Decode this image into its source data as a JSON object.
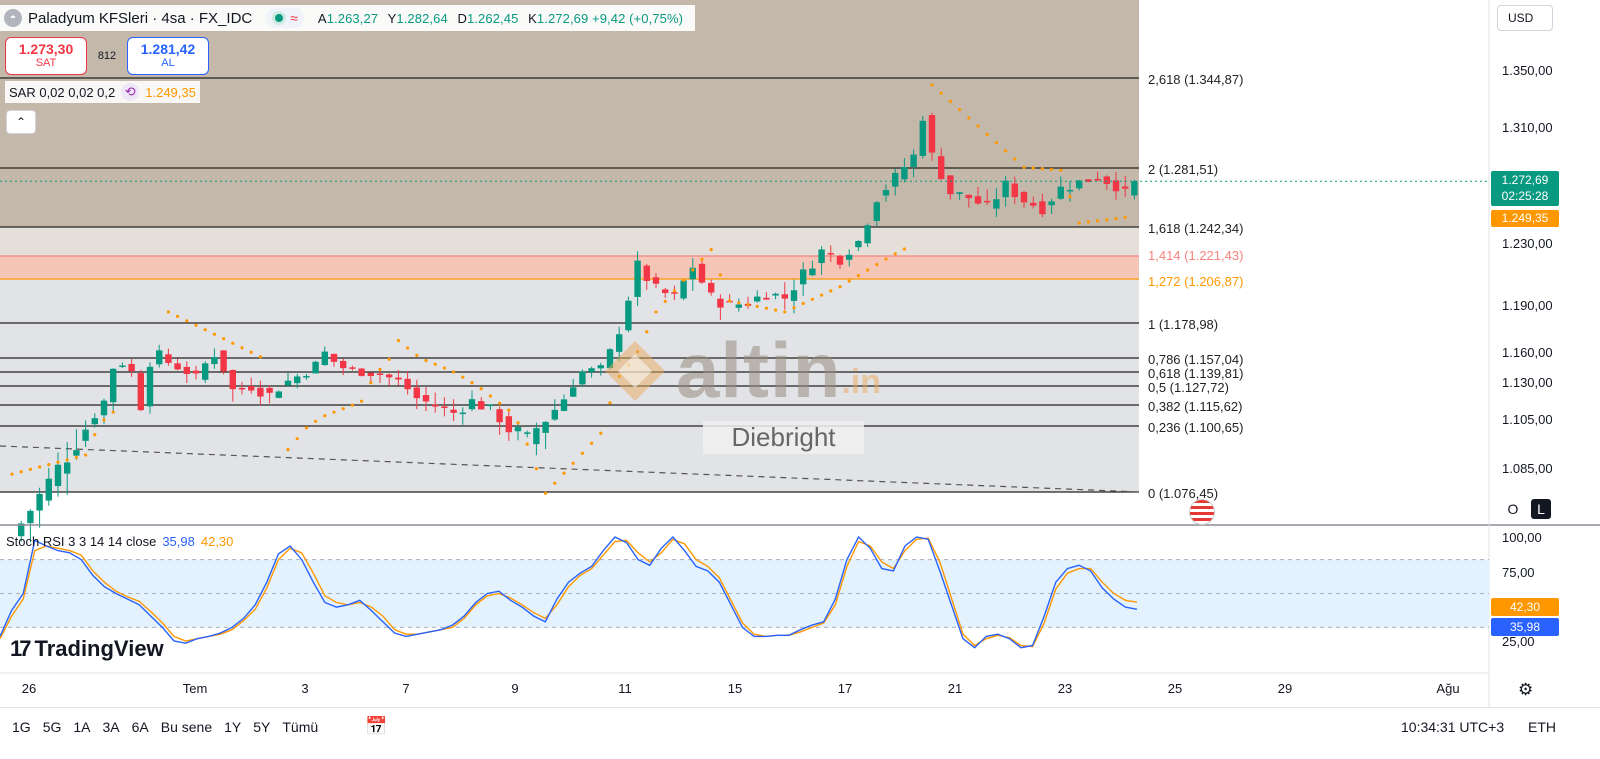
{
  "header": {
    "symbol": "Paladyum KFSleri · 4sa · FX_IDC",
    "logo_icon": "palladium-logo-icon",
    "ohlc": [
      {
        "k": "A",
        "v": "1.263,27"
      },
      {
        "k": "Y",
        "v": "1.282,64"
      },
      {
        "k": "D",
        "v": "1.262,45"
      },
      {
        "k": "K",
        "v": "1.272,69 +9,42 (+0,75%)"
      }
    ],
    "wave_icon": "≈"
  },
  "trade": {
    "sell_price": "1.273,30",
    "sell_label": "SAT",
    "spread": "812",
    "buy_price": "1.281,42",
    "buy_label": "AL"
  },
  "sar": {
    "label": "SAR 0,02 0,02 0,2",
    "value": "1.249,35",
    "icon": "⟲"
  },
  "collapse_icon": "⌃",
  "stoch": {
    "label": "Stoch RSI 3 3 14 14 close",
    "k": "35,98",
    "d": "42,30"
  },
  "brand": {
    "mark": "17",
    "name": "TradingView"
  },
  "currency": "USD",
  "price_axis": [
    "1.350,00",
    "1.310,00",
    "1.230,00",
    "1.190,00",
    "1.160,00",
    "1.130,00",
    "1.105,00",
    "1.085,00"
  ],
  "price_axis_values": [
    1350,
    1310,
    1230,
    1190,
    1160,
    1130,
    1105,
    1085
  ],
  "current_price": {
    "value": "1.272,69",
    "countdown": "02:25:28",
    "sar": "1.249,35"
  },
  "axis_buttons": {
    "o": "O",
    "l": "L"
  },
  "stoch_axis": [
    "100,00",
    "75,00",
    "25,00"
  ],
  "stoch_marks": {
    "d": "42,30",
    "k": "35,98"
  },
  "x_axis": [
    "26",
    "Tem",
    "3",
    "7",
    "9",
    "11",
    "15",
    "17",
    "21",
    "23",
    "25",
    "29",
    "Ağu"
  ],
  "ranges": [
    "1G",
    "5G",
    "1A",
    "3A",
    "6A",
    "Bu sene",
    "1Y",
    "5Y",
    "Tümü"
  ],
  "clock": "10:34:31 UTC+3",
  "session": "ETH",
  "watermark": {
    "text": "altin",
    "suffix": ".in",
    "sub": "Diebright"
  },
  "colors": {
    "up": "#089981",
    "down": "#f23645",
    "sar": "#ff9800",
    "stoch_k": "#2962ff",
    "stoch_d": "#ff9800",
    "fib_top_zone": "#c3b8aa",
    "fib_highlight": "#f5c6b8"
  },
  "chart_data": {
    "type": "candlestick",
    "timeframe": "4sa",
    "fibonacci": [
      {
        "ratio": "2,618",
        "price": 1344.87,
        "label": "2,618 (1.344,87)"
      },
      {
        "ratio": "2",
        "price": 1281.51,
        "label": "2 (1.281,51)"
      },
      {
        "ratio": "1,618",
        "price": 1242.34,
        "label": "1,618 (1.242,34)"
      },
      {
        "ratio": "1,414",
        "price": 1221.43,
        "label": "1,414 (1.221,43)",
        "color": "#f7837e"
      },
      {
        "ratio": "1,272",
        "price": 1206.87,
        "label": "1,272 (1.206,87)",
        "color": "#ff9800"
      },
      {
        "ratio": "1",
        "price": 1178.98,
        "label": "1 (1.178,98)"
      },
      {
        "ratio": "0,786",
        "price": 1157.04,
        "label": "0,786 (1.157,04)"
      },
      {
        "ratio": "0,618",
        "price": 1139.81,
        "label": "0,618 (1.139,81)"
      },
      {
        "ratio": "0,5",
        "price": 1127.72,
        "label": "0,5 (1.127,72)"
      },
      {
        "ratio": "0,382",
        "price": 1115.62,
        "label": "0,382 (1.115,62)"
      },
      {
        "ratio": "0,236",
        "price": 1100.65,
        "label": "0,236 (1.100,65)"
      },
      {
        "ratio": "0",
        "price": 1076.45,
        "label": "0 (1.076,45)"
      }
    ],
    "close_path": [
      [
        0,
        1060
      ],
      [
        4,
        1080
      ],
      [
        8,
        1100
      ],
      [
        10,
        1118
      ],
      [
        11,
        1145
      ],
      [
        12,
        1150
      ],
      [
        13,
        1140
      ],
      [
        14,
        1115
      ],
      [
        15,
        1150
      ],
      [
        16,
        1158
      ],
      [
        18,
        1145
      ],
      [
        20,
        1135
      ],
      [
        21,
        1150
      ],
      [
        22,
        1160
      ],
      [
        24,
        1125
      ],
      [
        26,
        1128
      ],
      [
        28,
        1122
      ],
      [
        30,
        1132
      ],
      [
        32,
        1140
      ],
      [
        34,
        1160
      ],
      [
        36,
        1145
      ],
      [
        38,
        1140
      ],
      [
        40,
        1138
      ],
      [
        42,
        1132
      ],
      [
        44,
        1120
      ],
      [
        46,
        1115
      ],
      [
        48,
        1110
      ],
      [
        50,
        1118
      ],
      [
        52,
        1112
      ],
      [
        54,
        1100
      ],
      [
        56,
        1095
      ],
      [
        58,
        1105
      ],
      [
        60,
        1120
      ],
      [
        62,
        1140
      ],
      [
        64,
        1145
      ],
      [
        66,
        1175
      ],
      [
        68,
        1215
      ],
      [
        70,
        1200
      ],
      [
        72,
        1195
      ],
      [
        74,
        1215
      ],
      [
        76,
        1195
      ],
      [
        78,
        1190
      ],
      [
        80,
        1192
      ],
      [
        82,
        1198
      ],
      [
        84,
        1195
      ],
      [
        86,
        1210
      ],
      [
        88,
        1225
      ],
      [
        90,
        1220
      ],
      [
        92,
        1232
      ],
      [
        94,
        1262
      ],
      [
        96,
        1275
      ],
      [
        98,
        1290
      ],
      [
        99,
        1318
      ],
      [
        100,
        1290
      ],
      [
        102,
        1265
      ],
      [
        104,
        1262
      ],
      [
        106,
        1255
      ],
      [
        108,
        1270
      ],
      [
        110,
        1260
      ],
      [
        112,
        1255
      ],
      [
        114,
        1268
      ],
      [
        116,
        1272
      ],
      [
        118,
        1276
      ],
      [
        120,
        1270
      ],
      [
        121,
        1264
      ],
      [
        122,
        1272.69
      ]
    ],
    "parabolic_sar": [
      [
        0,
        1083
      ],
      [
        8,
        1090
      ],
      [
        10,
        1105
      ],
      [
        12,
        1116
      ],
      [
        17,
        1186
      ],
      [
        28,
        1155
      ],
      [
        30,
        1092
      ],
      [
        34,
        1108
      ],
      [
        38,
        1118
      ],
      [
        42,
        1168
      ],
      [
        54,
        1112
      ],
      [
        58,
        1076
      ],
      [
        64,
        1098
      ],
      [
        66,
        1136
      ],
      [
        70,
        1186
      ],
      [
        76,
        1226
      ],
      [
        78,
        1193
      ],
      [
        84,
        1186
      ],
      [
        90,
        1202
      ],
      [
        98,
        1230
      ],
      [
        100,
        1340
      ],
      [
        110,
        1282
      ],
      [
        114,
        1280
      ],
      [
        116,
        1245
      ],
      [
        122,
        1249.35
      ]
    ],
    "stoch_rsi": {
      "k": [
        12,
        35,
        50,
        97,
        92,
        88,
        86,
        80,
        66,
        56,
        50,
        45,
        40,
        30,
        20,
        8,
        6,
        10,
        12,
        15,
        20,
        28,
        40,
        60,
        85,
        92,
        80,
        60,
        42,
        38,
        40,
        44,
        35,
        25,
        15,
        12,
        14,
        16,
        18,
        22,
        30,
        42,
        50,
        52,
        44,
        38,
        30,
        25,
        45,
        60,
        68,
        74,
        88,
        100,
        95,
        80,
        75,
        90,
        100,
        88,
        74,
        70,
        60,
        40,
        20,
        12,
        12,
        13,
        13,
        18,
        22,
        25,
        45,
        80,
        100,
        90,
        72,
        70,
        92,
        100,
        98,
        70,
        40,
        10,
        2,
        12,
        14,
        10,
        2,
        4,
        30,
        60,
        72,
        75,
        70,
        55,
        45,
        38,
        35.98
      ],
      "d": [
        10,
        30,
        45,
        88,
        92,
        90,
        88,
        84,
        70,
        60,
        52,
        47,
        43,
        34,
        24,
        12,
        8,
        10,
        12,
        14,
        18,
        26,
        36,
        55,
        80,
        90,
        86,
        68,
        48,
        42,
        40,
        42,
        38,
        30,
        18,
        14,
        14,
        16,
        18,
        20,
        28,
        40,
        48,
        50,
        46,
        40,
        33,
        28,
        40,
        56,
        66,
        72,
        84,
        96,
        97,
        86,
        78,
        86,
        98,
        94,
        80,
        74,
        64,
        44,
        24,
        14,
        12,
        13,
        13,
        16,
        20,
        24,
        40,
        74,
        96,
        92,
        78,
        72,
        88,
        98,
        99,
        78,
        46,
        14,
        4,
        10,
        13,
        11,
        4,
        3,
        24,
        54,
        68,
        72,
        72,
        60,
        50,
        44,
        42.3
      ],
      "overbought": 80,
      "oversold": 20,
      "ylim": [
        0,
        100
      ]
    },
    "ylim": [
      1070,
      1370
    ]
  }
}
